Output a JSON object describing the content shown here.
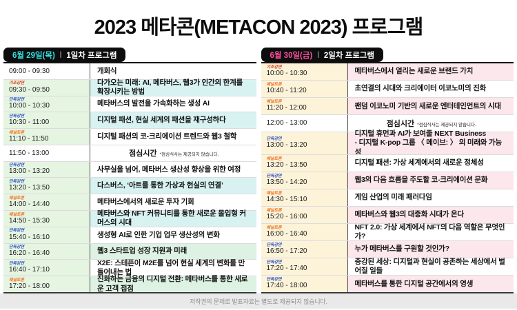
{
  "title": "2023 메타콘(METACON 2023) 프로그램",
  "footer": "저작권의 문제로 발표자료는 별도로 제공되지 않습니다.",
  "lunch_note": "*점심식사는 제공되지 않습니다.",
  "type_colors": {
    "기조강연": "#e03a14",
    "단독강연": "#2a52c4",
    "패널토론": "#ef7320"
  },
  "columns": [
    {
      "date": "6월 29일(목)",
      "separator": "|",
      "day_label": "1일차 프로그램",
      "accent": "#35dede",
      "time_bg": "#e6f4e2",
      "highlight_bg": "#d8f2f2",
      "rows": [
        {
          "time": "09:00 - 09:30",
          "type": "",
          "title": "개회식",
          "highlight": false,
          "plain": true
        },
        {
          "time": "09:30 - 09:50",
          "type": "기조강연",
          "title": "다가오는 미래: AI, 메타버스, 웹3가 인간의 한계를 확장시키는 방법",
          "highlight": true
        },
        {
          "time": "10:00 - 10:30",
          "type": "단독강연",
          "title": "메타버스의 발전을 가속화하는 생성 AI",
          "highlight": false
        },
        {
          "time": "10:30 - 11:00",
          "type": "단독강연",
          "title": "디지털 패션, 현실 세계의 패션을 재구성하다",
          "highlight": true
        },
        {
          "time": "11:10 - 11:50",
          "type": "패널토론",
          "title": "디지털 패션의 코-크리에이션 트렌드와 웹3 철학",
          "highlight": false
        },
        {
          "time": "11:50 - 13:00",
          "type": "",
          "title": "점심시간",
          "highlight": false,
          "plain": true,
          "lunch": true
        },
        {
          "time": "13:00 - 13:20",
          "type": "단독강연",
          "title": "사무실을 넘어, 메타버스 생산성 향상을 위한 여정",
          "highlight": false
        },
        {
          "time": "13:20 - 13:50",
          "type": "단독강연",
          "title": "다스버스, ‘아트를 통한 가상과 현실의 연결’",
          "highlight": true
        },
        {
          "time": "14:00 - 14:40",
          "type": "패널토론",
          "title": "메타버스에서의 새로운 투자 기회",
          "highlight": false
        },
        {
          "time": "14:50 - 15:30",
          "type": "패널토론",
          "title": "메타버스와 NFT 커뮤니티를 통한 새로운 몰입형 커머스의 시대",
          "highlight": true
        },
        {
          "time": "15:40 - 16:10",
          "type": "단독강연",
          "title": "생성형 AI로 인한 기업 업무 생산성의 변화",
          "highlight": false
        },
        {
          "time": "16:20 - 16:40",
          "type": "단독강연",
          "title": "웹3 스타트업 성장 지원과 미래",
          "highlight": true,
          "bg": "#ddf2e3"
        },
        {
          "time": "16:40 - 17:10",
          "type": "단독강연",
          "title": "X2E: 스테픈이 M2E를 넘어 현실 세계의 변화를 만들어내는 법",
          "highlight": false
        },
        {
          "time": "17:20 - 18:00",
          "type": "패널토론",
          "title": "진화하는 금융의 디지털 전환: 메타버스를 통한 새로운 고객 접점",
          "highlight": true,
          "bg": "#ddf2e3"
        }
      ]
    },
    {
      "date": "6월 30일(금)",
      "separator": "|",
      "day_label": "2일차 프로그램",
      "accent": "#fc4f9e",
      "time_bg": "#fcf3d9",
      "highlight_bg": "#fce7ed",
      "rows": [
        {
          "time": "10:00 - 10:30",
          "type": "기조강연",
          "title": "메타버스에서 열리는 새로운 브랜드 가치",
          "highlight": true
        },
        {
          "time": "10:40 - 11:20",
          "type": "패널토론",
          "title": "초연결의 시대와 크리에이터 이코노미의 진화",
          "highlight": false
        },
        {
          "time": "11:20 - 12:00",
          "type": "패널토론",
          "title": "팬덤 이코노미 기반의 새로운 엔터테인먼트의 시대",
          "highlight": true
        },
        {
          "time": "12:00 - 13:00",
          "type": "",
          "title": "점심시간",
          "highlight": false,
          "plain": true,
          "lunch": true
        },
        {
          "time": "13:00 - 13:20",
          "type": "단독강연",
          "title": "디지털 휴먼과 AI가 보여줄 NEXT Business\n- 디지털 K-pop 그룹 〈 메이브: 〉 의 미래와 가능성",
          "highlight": true,
          "tall": true
        },
        {
          "time": "13:20 - 13:50",
          "type": "패널토론",
          "title": "디지털 패션: 가상 세계에서의 새로운 정체성",
          "highlight": false
        },
        {
          "time": "13:50 - 14:20",
          "type": "단독강연",
          "title": "웹3의 다음 흐름을 주도할 코-크리에이션 문화",
          "highlight": true
        },
        {
          "time": "14:30 - 15:10",
          "type": "패널토론",
          "title": "게임 산업의 미래 패러다임",
          "highlight": false
        },
        {
          "time": "15:20 - 16:00",
          "type": "패널토론",
          "title": "메타버스와 웹3의 대중화 시대가 온다",
          "highlight": true
        },
        {
          "time": "16:00 - 16:40",
          "type": "패널토론",
          "title": "NFT 2.0: 가상 세계에서 NFT의 다음 역할은 무엇인가?",
          "highlight": false
        },
        {
          "time": "16:50 - 17:20",
          "type": "단독강연",
          "title": "누가 메타버스를 구원할 것인가?",
          "highlight": true
        },
        {
          "time": "17:20 - 17:40",
          "type": "단독강연",
          "title": "증강된 세상: 디지털과 현실이 공존하는 세상에서 벌어질 일들",
          "highlight": false
        },
        {
          "time": "17:40 - 18:00",
          "type": "단독강연",
          "title": "메타버스를 통한 디지털 공간에서의 영생",
          "highlight": true
        }
      ]
    }
  ]
}
